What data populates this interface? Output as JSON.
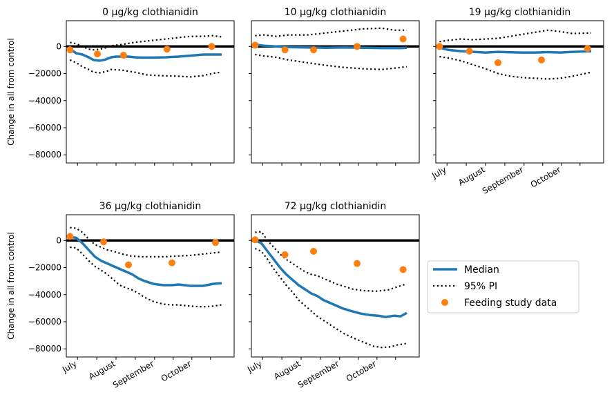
{
  "chart_data": {
    "type": "line",
    "ylabel": "Change in all from control",
    "ylim": [
      -86000,
      19000
    ],
    "yticks": [
      0,
      -20000,
      -40000,
      -60000,
      -80000
    ],
    "month_ticks": [
      {
        "label": "July",
        "day": 9
      },
      {
        "label": "August",
        "day": 40
      },
      {
        "label": "September",
        "day": 71
      },
      {
        "label": "October",
        "day": 101
      }
    ],
    "xlim": [
      0,
      135
    ],
    "legend": {
      "placement": "right of bottom row",
      "entries": [
        "Median",
        "95% PI",
        "Feeding study data"
      ]
    },
    "colors": {
      "median": "#1f77b4",
      "pi": "#000000",
      "observed": "#ff7f0e",
      "zero_line": "#000000"
    },
    "panels": [
      {
        "title": "0 µg/kg clothianidin",
        "median": [
          [
            3,
            -2000
          ],
          [
            8,
            -5000
          ],
          [
            13,
            -6000
          ],
          [
            18,
            -8000
          ],
          [
            22,
            -10000
          ],
          [
            27,
            -10500
          ],
          [
            32,
            -9500
          ],
          [
            36,
            -8000
          ],
          [
            40,
            -7500
          ],
          [
            45,
            -7500
          ],
          [
            50,
            -7500
          ],
          [
            55,
            -8000
          ],
          [
            60,
            -8200
          ],
          [
            70,
            -8200
          ],
          [
            80,
            -8000
          ],
          [
            90,
            -7500
          ],
          [
            100,
            -6800
          ],
          [
            110,
            -6000
          ],
          [
            125,
            -6000
          ]
        ],
        "pi_upper": [
          [
            3,
            3000
          ],
          [
            8,
            2000
          ],
          [
            13,
            0
          ],
          [
            18,
            -2000
          ],
          [
            22,
            -2500
          ],
          [
            27,
            -2000
          ],
          [
            32,
            -1000
          ],
          [
            36,
            500
          ],
          [
            45,
            1500
          ],
          [
            55,
            3000
          ],
          [
            70,
            4500
          ],
          [
            80,
            5500
          ],
          [
            90,
            6500
          ],
          [
            100,
            7500
          ],
          [
            110,
            7500
          ],
          [
            118,
            8000
          ],
          [
            125,
            7000
          ]
        ],
        "pi_lower": [
          [
            3,
            -10000
          ],
          [
            8,
            -12000
          ],
          [
            13,
            -15000
          ],
          [
            18,
            -17000
          ],
          [
            22,
            -19000
          ],
          [
            27,
            -19500
          ],
          [
            32,
            -18500
          ],
          [
            36,
            -17000
          ],
          [
            45,
            -17500
          ],
          [
            55,
            -19000
          ],
          [
            65,
            -21000
          ],
          [
            75,
            -21500
          ],
          [
            90,
            -22000
          ],
          [
            100,
            -22500
          ],
          [
            110,
            -21500
          ],
          [
            120,
            -19500
          ],
          [
            125,
            -19000
          ]
        ],
        "observed": [
          [
            3,
            -2500
          ],
          [
            25,
            -5500
          ],
          [
            46,
            -6500
          ],
          [
            81,
            -2000
          ],
          [
            117,
            0
          ]
        ]
      },
      {
        "title": "10 µg/kg clothianidin",
        "median": [
          [
            3,
            1500
          ],
          [
            10,
            500
          ],
          [
            20,
            0
          ],
          [
            30,
            -500
          ],
          [
            45,
            -800
          ],
          [
            60,
            -1000
          ],
          [
            75,
            -800
          ],
          [
            90,
            -1000
          ],
          [
            105,
            -1200
          ],
          [
            120,
            -1200
          ],
          [
            125,
            -1000
          ]
        ],
        "pi_upper": [
          [
            3,
            8000
          ],
          [
            10,
            8500
          ],
          [
            20,
            7500
          ],
          [
            30,
            8500
          ],
          [
            45,
            8500
          ],
          [
            60,
            10000
          ],
          [
            75,
            11500
          ],
          [
            90,
            13000
          ],
          [
            105,
            13500
          ],
          [
            115,
            12000
          ],
          [
            125,
            12000
          ]
        ],
        "pi_lower": [
          [
            3,
            -6000
          ],
          [
            10,
            -7000
          ],
          [
            20,
            -8000
          ],
          [
            30,
            -10000
          ],
          [
            45,
            -12000
          ],
          [
            60,
            -14000
          ],
          [
            75,
            -15500
          ],
          [
            90,
            -16500
          ],
          [
            105,
            -17000
          ],
          [
            115,
            -16000
          ],
          [
            125,
            -15000
          ]
        ],
        "observed": [
          [
            3,
            1000
          ],
          [
            27,
            -2500
          ],
          [
            50,
            -2500
          ],
          [
            85,
            0
          ],
          [
            122,
            5500
          ]
        ]
      },
      {
        "title": "19 µg/kg clothianidin",
        "median": [
          [
            3,
            -1000
          ],
          [
            10,
            -2500
          ],
          [
            20,
            -3500
          ],
          [
            30,
            -4000
          ],
          [
            40,
            -4500
          ],
          [
            50,
            -4000
          ],
          [
            60,
            -4300
          ],
          [
            70,
            -4500
          ],
          [
            80,
            -4500
          ],
          [
            90,
            -4200
          ],
          [
            100,
            -4500
          ],
          [
            110,
            -4000
          ],
          [
            125,
            -3500
          ]
        ],
        "pi_upper": [
          [
            3,
            3500
          ],
          [
            10,
            4500
          ],
          [
            20,
            5500
          ],
          [
            30,
            5000
          ],
          [
            40,
            5500
          ],
          [
            50,
            6000
          ],
          [
            60,
            7500
          ],
          [
            70,
            9000
          ],
          [
            80,
            10500
          ],
          [
            90,
            12000
          ],
          [
            100,
            11000
          ],
          [
            110,
            9500
          ],
          [
            125,
            10000
          ]
        ],
        "pi_lower": [
          [
            3,
            -7500
          ],
          [
            10,
            -8500
          ],
          [
            20,
            -10500
          ],
          [
            30,
            -13500
          ],
          [
            40,
            -16500
          ],
          [
            50,
            -20000
          ],
          [
            60,
            -22000
          ],
          [
            70,
            -23000
          ],
          [
            80,
            -23500
          ],
          [
            90,
            -24000
          ],
          [
            100,
            -23500
          ],
          [
            110,
            -22000
          ],
          [
            125,
            -19000
          ]
        ],
        "observed": [
          [
            3,
            0
          ],
          [
            27,
            -3500
          ],
          [
            50,
            -12000
          ],
          [
            85,
            -10000
          ],
          [
            122,
            -1500
          ]
        ]
      },
      {
        "title": "36 µg/kg clothianidin",
        "median": [
          [
            3,
            2500
          ],
          [
            8,
            2000
          ],
          [
            13,
            -2000
          ],
          [
            18,
            -7000
          ],
          [
            23,
            -12000
          ],
          [
            28,
            -15000
          ],
          [
            33,
            -17000
          ],
          [
            38,
            -19000
          ],
          [
            43,
            -21000
          ],
          [
            48,
            -23000
          ],
          [
            53,
            -25000
          ],
          [
            58,
            -28000
          ],
          [
            63,
            -30000
          ],
          [
            70,
            -32000
          ],
          [
            78,
            -33000
          ],
          [
            85,
            -33000
          ],
          [
            90,
            -32500
          ],
          [
            100,
            -33500
          ],
          [
            110,
            -33500
          ],
          [
            118,
            -32000
          ],
          [
            125,
            -31500
          ]
        ],
        "pi_upper": [
          [
            3,
            9500
          ],
          [
            8,
            9000
          ],
          [
            13,
            6000
          ],
          [
            18,
            1000
          ],
          [
            23,
            -3000
          ],
          [
            28,
            -5000
          ],
          [
            33,
            -7000
          ],
          [
            38,
            -8000
          ],
          [
            45,
            -10000
          ],
          [
            52,
            -11500
          ],
          [
            60,
            -12000
          ],
          [
            70,
            -12000
          ],
          [
            80,
            -12000
          ],
          [
            90,
            -11500
          ],
          [
            100,
            -11000
          ],
          [
            110,
            -10000
          ],
          [
            120,
            -9000
          ],
          [
            125,
            -8500
          ]
        ],
        "pi_lower": [
          [
            3,
            -5000
          ],
          [
            8,
            -5500
          ],
          [
            13,
            -10000
          ],
          [
            18,
            -15000
          ],
          [
            23,
            -19000
          ],
          [
            28,
            -22000
          ],
          [
            33,
            -25000
          ],
          [
            38,
            -29000
          ],
          [
            43,
            -33000
          ],
          [
            48,
            -35000
          ],
          [
            53,
            -36500
          ],
          [
            58,
            -39000
          ],
          [
            63,
            -42000
          ],
          [
            70,
            -45000
          ],
          [
            78,
            -47000
          ],
          [
            85,
            -47500
          ],
          [
            90,
            -47500
          ],
          [
            100,
            -48500
          ],
          [
            110,
            -49000
          ],
          [
            118,
            -48500
          ],
          [
            125,
            -47500
          ]
        ],
        "observed": [
          [
            3,
            3000
          ],
          [
            30,
            -1000
          ],
          [
            50,
            -18000
          ],
          [
            85,
            -16500
          ],
          [
            120,
            -1500
          ]
        ]
      },
      {
        "title": "72 µg/kg clothianidin",
        "median": [
          [
            3,
            0
          ],
          [
            8,
            -2000
          ],
          [
            13,
            -8000
          ],
          [
            18,
            -14000
          ],
          [
            23,
            -20000
          ],
          [
            28,
            -25000
          ],
          [
            33,
            -29000
          ],
          [
            38,
            -33000
          ],
          [
            43,
            -36000
          ],
          [
            48,
            -39000
          ],
          [
            53,
            -41000
          ],
          [
            58,
            -44000
          ],
          [
            63,
            -46000
          ],
          [
            68,
            -48000
          ],
          [
            73,
            -50000
          ],
          [
            80,
            -52000
          ],
          [
            88,
            -54000
          ],
          [
            95,
            -55000
          ],
          [
            102,
            -55500
          ],
          [
            108,
            -56500
          ],
          [
            115,
            -55500
          ],
          [
            120,
            -56000
          ],
          [
            125,
            -53500
          ]
        ],
        "pi_upper": [
          [
            3,
            6000
          ],
          [
            8,
            6500
          ],
          [
            13,
            0
          ],
          [
            18,
            -5000
          ],
          [
            23,
            -10000
          ],
          [
            28,
            -14000
          ],
          [
            33,
            -17000
          ],
          [
            38,
            -20000
          ],
          [
            43,
            -23000
          ],
          [
            48,
            -25000
          ],
          [
            53,
            -26000
          ],
          [
            58,
            -28000
          ],
          [
            63,
            -30000
          ],
          [
            68,
            -32000
          ],
          [
            75,
            -34000
          ],
          [
            82,
            -36000
          ],
          [
            90,
            -37000
          ],
          [
            100,
            -37500
          ],
          [
            110,
            -36500
          ],
          [
            118,
            -34000
          ],
          [
            125,
            -32000
          ]
        ],
        "pi_lower": [
          [
            3,
            -6000
          ],
          [
            8,
            -8000
          ],
          [
            13,
            -14000
          ],
          [
            18,
            -21000
          ],
          [
            23,
            -27000
          ],
          [
            28,
            -33000
          ],
          [
            33,
            -38000
          ],
          [
            38,
            -44000
          ],
          [
            43,
            -48000
          ],
          [
            48,
            -52000
          ],
          [
            53,
            -56000
          ],
          [
            58,
            -59000
          ],
          [
            63,
            -62000
          ],
          [
            68,
            -65000
          ],
          [
            75,
            -69000
          ],
          [
            82,
            -72000
          ],
          [
            90,
            -75000
          ],
          [
            98,
            -78000
          ],
          [
            105,
            -79000
          ],
          [
            112,
            -78500
          ],
          [
            118,
            -77000
          ],
          [
            125,
            -76000
          ]
        ],
        "observed": [
          [
            3,
            500
          ],
          [
            27,
            -10500
          ],
          [
            50,
            -8000
          ],
          [
            85,
            -17000
          ],
          [
            122,
            -21500
          ]
        ]
      }
    ]
  }
}
